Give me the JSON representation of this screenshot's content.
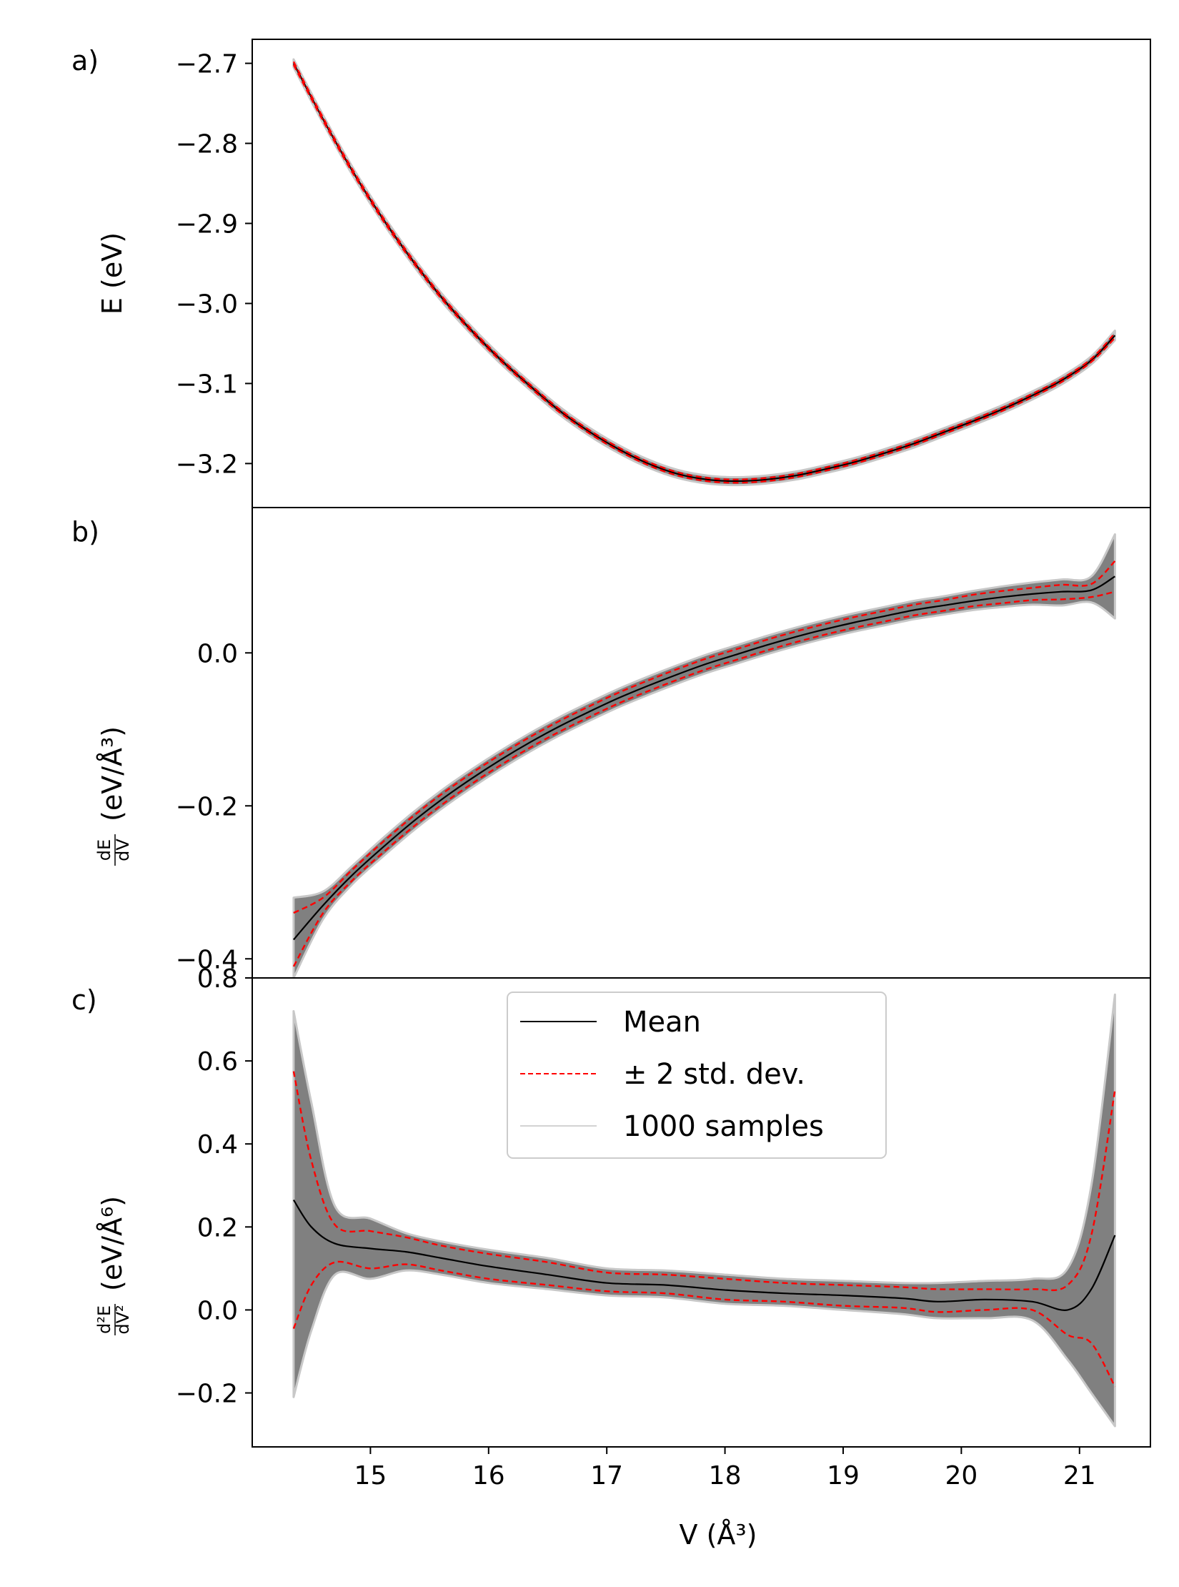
{
  "figure": {
    "xlabel": "V (Å³)",
    "x_ticks": [
      15,
      16,
      17,
      18,
      19,
      20,
      21
    ]
  },
  "legend": {
    "placement": "upper-center of panel c",
    "entries": [
      {
        "label": "Mean",
        "color": "#000000",
        "style": "solid"
      },
      {
        "label": "± 2 std. dev.",
        "color": "#ff0000",
        "style": "dashed"
      },
      {
        "label": "1000 samples",
        "color": "#d3d3d3",
        "style": "solid"
      }
    ]
  },
  "colors": {
    "mean": "#000000",
    "std": "#ff0000",
    "samples": "#808080",
    "sample_edge": "#c8c8c8"
  },
  "chart_data": [
    {
      "type": "line",
      "panel_label": "a)",
      "ylabel": "E (eV)",
      "xlim": [
        14.0,
        21.6
      ],
      "ylim": [
        -3.255,
        -2.67
      ],
      "y_ticks": [
        -2.7,
        -2.8,
        -2.9,
        -3.0,
        -3.1,
        -3.2
      ],
      "y_tick_labels": [
        "−2.7",
        "−2.8",
        "−2.9",
        "−3.0",
        "−3.1",
        "−3.2"
      ],
      "grid": false,
      "x": [
        14.35,
        14.6,
        14.85,
        15.1,
        15.35,
        15.6,
        15.85,
        16.1,
        16.35,
        16.6,
        16.85,
        17.1,
        17.35,
        17.6,
        17.85,
        18.1,
        18.35,
        18.6,
        18.85,
        19.1,
        19.35,
        19.6,
        19.85,
        20.1,
        20.35,
        20.6,
        20.85,
        21.1,
        21.3
      ],
      "series": [
        {
          "name": "Mean",
          "values": [
            -2.7,
            -2.77,
            -2.835,
            -2.893,
            -2.945,
            -2.992,
            -3.033,
            -3.07,
            -3.103,
            -3.134,
            -3.16,
            -3.182,
            -3.2,
            -3.213,
            -3.22,
            -3.222,
            -3.22,
            -3.215,
            -3.207,
            -3.198,
            -3.187,
            -3.175,
            -3.161,
            -3.147,
            -3.132,
            -3.115,
            -3.096,
            -3.071,
            -3.04
          ]
        },
        {
          "name": "± 2 std. dev.",
          "upper": [
            -2.698,
            -2.768,
            -2.833,
            -2.891,
            -2.943,
            -2.99,
            -3.031,
            -3.068,
            -3.101,
            -3.132,
            -3.158,
            -3.18,
            -3.198,
            -3.211,
            -3.218,
            -3.22,
            -3.218,
            -3.213,
            -3.205,
            -3.196,
            -3.185,
            -3.173,
            -3.159,
            -3.145,
            -3.13,
            -3.113,
            -3.094,
            -3.069,
            -3.037
          ],
          "lower": [
            -2.702,
            -2.772,
            -2.837,
            -2.895,
            -2.947,
            -2.994,
            -3.035,
            -3.072,
            -3.105,
            -3.136,
            -3.162,
            -3.184,
            -3.202,
            -3.215,
            -3.222,
            -3.224,
            -3.222,
            -3.217,
            -3.209,
            -3.2,
            -3.189,
            -3.177,
            -3.163,
            -3.149,
            -3.134,
            -3.117,
            -3.098,
            -3.073,
            -3.043
          ]
        },
        {
          "name": "1000 samples",
          "upper": [
            -2.695,
            -2.765,
            -2.83,
            -2.888,
            -2.94,
            -2.987,
            -3.028,
            -3.065,
            -3.098,
            -3.129,
            -3.155,
            -3.177,
            -3.195,
            -3.208,
            -3.215,
            -3.217,
            -3.215,
            -3.21,
            -3.202,
            -3.193,
            -3.182,
            -3.17,
            -3.156,
            -3.142,
            -3.127,
            -3.11,
            -3.091,
            -3.066,
            -3.034
          ],
          "lower": [
            -2.705,
            -2.775,
            -2.84,
            -2.898,
            -2.95,
            -2.997,
            -3.038,
            -3.075,
            -3.108,
            -3.139,
            -3.165,
            -3.187,
            -3.205,
            -3.218,
            -3.225,
            -3.227,
            -3.225,
            -3.22,
            -3.212,
            -3.203,
            -3.192,
            -3.18,
            -3.166,
            -3.152,
            -3.137,
            -3.12,
            -3.101,
            -3.076,
            -3.046
          ]
        }
      ]
    },
    {
      "type": "line",
      "panel_label": "b)",
      "ylabel_fraction": {
        "num": "dE",
        "den": "dV"
      },
      "ylabel": "(eV/Å³)",
      "xlim": [
        14.0,
        21.6
      ],
      "ylim": [
        -0.425,
        0.19
      ],
      "y_ticks": [
        0.0,
        -0.2,
        -0.4
      ],
      "y_tick_labels": [
        "0.0",
        "−0.2",
        "−0.4"
      ],
      "grid": false,
      "x": [
        14.35,
        14.6,
        14.85,
        15.1,
        15.35,
        15.6,
        15.85,
        16.1,
        16.35,
        16.6,
        16.85,
        17.1,
        17.35,
        17.6,
        17.85,
        18.1,
        18.35,
        18.6,
        18.85,
        19.1,
        19.35,
        19.6,
        19.85,
        20.1,
        20.35,
        20.6,
        20.85,
        21.1,
        21.3
      ],
      "series": [
        {
          "name": "Mean",
          "values": [
            -0.375,
            -0.33,
            -0.29,
            -0.255,
            -0.222,
            -0.192,
            -0.165,
            -0.14,
            -0.117,
            -0.096,
            -0.077,
            -0.059,
            -0.043,
            -0.028,
            -0.014,
            -0.002,
            0.01,
            0.021,
            0.031,
            0.04,
            0.048,
            0.056,
            0.062,
            0.068,
            0.073,
            0.077,
            0.08,
            0.082,
            0.1
          ]
        },
        {
          "name": "± 2 std. dev.",
          "upper": [
            -0.34,
            -0.32,
            -0.283,
            -0.248,
            -0.215,
            -0.185,
            -0.158,
            -0.133,
            -0.11,
            -0.089,
            -0.07,
            -0.052,
            -0.036,
            -0.021,
            -0.007,
            0.005,
            0.017,
            0.028,
            0.038,
            0.047,
            0.055,
            0.063,
            0.069,
            0.076,
            0.081,
            0.085,
            0.089,
            0.09,
            0.12
          ],
          "lower": [
            -0.41,
            -0.34,
            -0.297,
            -0.262,
            -0.229,
            -0.199,
            -0.172,
            -0.147,
            -0.124,
            -0.103,
            -0.084,
            -0.066,
            -0.05,
            -0.035,
            -0.021,
            -0.009,
            0.003,
            0.014,
            0.024,
            0.033,
            0.041,
            0.049,
            0.055,
            0.061,
            0.065,
            0.069,
            0.07,
            0.073,
            0.08
          ]
        },
        {
          "name": "1000 samples",
          "upper": [
            -0.32,
            -0.312,
            -0.278,
            -0.243,
            -0.21,
            -0.18,
            -0.153,
            -0.128,
            -0.105,
            -0.084,
            -0.065,
            -0.047,
            -0.031,
            -0.016,
            -0.002,
            0.01,
            0.022,
            0.033,
            0.043,
            0.052,
            0.06,
            0.068,
            0.074,
            0.081,
            0.087,
            0.092,
            0.096,
            0.1,
            0.155
          ],
          "lower": [
            -0.425,
            -0.348,
            -0.302,
            -0.267,
            -0.234,
            -0.204,
            -0.177,
            -0.152,
            -0.129,
            -0.108,
            -0.089,
            -0.071,
            -0.055,
            -0.04,
            -0.026,
            -0.014,
            -0.002,
            0.009,
            0.019,
            0.028,
            0.036,
            0.044,
            0.05,
            0.056,
            0.06,
            0.063,
            0.062,
            0.066,
            0.045
          ]
        }
      ]
    },
    {
      "type": "line",
      "panel_label": "c)",
      "ylabel_fraction": {
        "num": "d²E",
        "den": "dV²"
      },
      "ylabel": "(eV/Å⁶)",
      "xlim": [
        14.0,
        21.6
      ],
      "ylim": [
        -0.33,
        0.8
      ],
      "y_ticks": [
        0.8,
        0.6,
        0.4,
        0.2,
        0.0,
        -0.2
      ],
      "y_tick_labels": [
        "0.8",
        "0.6",
        "0.4",
        "0.2",
        "0.0",
        "−0.2"
      ],
      "grid": false,
      "x": [
        14.35,
        14.5,
        14.7,
        15.0,
        15.3,
        15.6,
        16.0,
        16.5,
        17.0,
        17.5,
        18.0,
        18.5,
        19.0,
        19.5,
        19.8,
        20.2,
        20.6,
        20.9,
        21.1,
        21.3
      ],
      "series": [
        {
          "name": "Mean",
          "values": [
            0.265,
            0.2,
            0.16,
            0.148,
            0.14,
            0.125,
            0.105,
            0.085,
            0.065,
            0.06,
            0.048,
            0.04,
            0.035,
            0.028,
            0.02,
            0.025,
            0.02,
            0.0,
            0.05,
            0.18
          ]
        },
        {
          "name": "± 2 std. dev.",
          "upper": [
            0.575,
            0.36,
            0.205,
            0.19,
            0.175,
            0.155,
            0.135,
            0.115,
            0.09,
            0.085,
            0.075,
            0.065,
            0.06,
            0.055,
            0.05,
            0.05,
            0.05,
            0.06,
            0.18,
            0.53
          ],
          "lower": [
            -0.045,
            0.06,
            0.115,
            0.1,
            0.11,
            0.095,
            0.075,
            0.06,
            0.045,
            0.04,
            0.025,
            0.02,
            0.01,
            0.005,
            -0.005,
            0.0,
            0.0,
            -0.06,
            -0.08,
            -0.185
          ]
        },
        {
          "name": "1000 samples",
          "upper": [
            0.72,
            0.5,
            0.25,
            0.22,
            0.185,
            0.165,
            0.145,
            0.125,
            0.1,
            0.095,
            0.085,
            0.075,
            0.07,
            0.065,
            0.065,
            0.07,
            0.075,
            0.1,
            0.3,
            0.76
          ],
          "lower": [
            -0.21,
            -0.05,
            0.085,
            0.075,
            0.095,
            0.085,
            0.065,
            0.05,
            0.035,
            0.03,
            0.015,
            0.01,
            0.0,
            -0.01,
            -0.02,
            -0.02,
            -0.025,
            -0.12,
            -0.2,
            -0.28
          ]
        }
      ]
    }
  ]
}
